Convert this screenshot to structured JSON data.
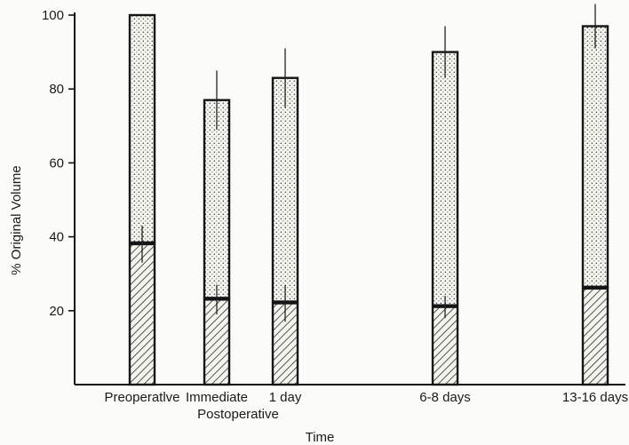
{
  "chart_data": {
    "type": "bar",
    "categories": [
      "Preoperatlve",
      "Immediate",
      "1 day",
      "6-8 days",
      "13-16 days"
    ],
    "category_sublabels": [
      "",
      "Postoperative",
      "",
      "",
      ""
    ],
    "x_positions_days": null,
    "xlabel": "Time",
    "ylabel": "% Original Volume",
    "ylim": [
      0,
      100
    ],
    "yticks": [
      20,
      40,
      60,
      80,
      100
    ],
    "grid": false,
    "series": [
      {
        "pattern": "hatched",
        "values": [
          38,
          23,
          22,
          21,
          26
        ],
        "error": [
          5,
          4,
          5,
          3,
          0
        ]
      },
      {
        "pattern": "dotted",
        "values": [
          100,
          77,
          83,
          90,
          97
        ],
        "error": [
          0,
          8,
          8,
          7,
          6
        ]
      }
    ]
  }
}
